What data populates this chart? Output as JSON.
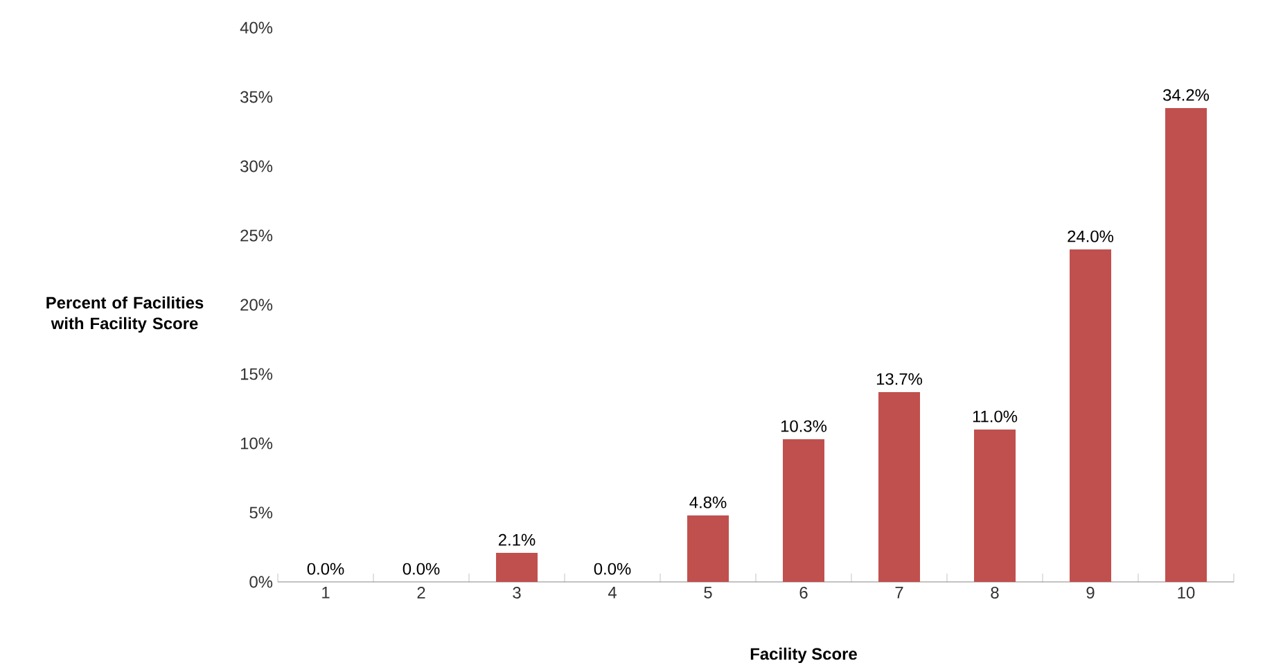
{
  "chart_data": {
    "type": "bar",
    "xlabel": "Facility Score",
    "ylabel": "Percent of Facilities with Facility Score",
    "categories": [
      "1",
      "2",
      "3",
      "4",
      "5",
      "6",
      "7",
      "8",
      "9",
      "10"
    ],
    "values": [
      0.0,
      0.0,
      2.1,
      0.0,
      4.8,
      10.3,
      13.7,
      11.0,
      24.0,
      34.2
    ],
    "value_labels": [
      "0.0%",
      "0.0%",
      "2.1%",
      "0.0%",
      "4.8%",
      "10.3%",
      "13.7%",
      "11.0%",
      "24.0%",
      "34.2%"
    ],
    "color": "#c0504d",
    "ylim": [
      0,
      40
    ],
    "yticks": [
      {
        "value": 0,
        "label": "0%"
      },
      {
        "value": 5,
        "label": "5%"
      },
      {
        "value": 10,
        "label": "10%"
      },
      {
        "value": 15,
        "label": "15%"
      },
      {
        "value": 20,
        "label": "20%"
      },
      {
        "value": 25,
        "label": "25%"
      },
      {
        "value": 30,
        "label": "30%"
      },
      {
        "value": 35,
        "label": "35%"
      },
      {
        "value": 40,
        "label": "40%"
      }
    ],
    "grid": false
  }
}
